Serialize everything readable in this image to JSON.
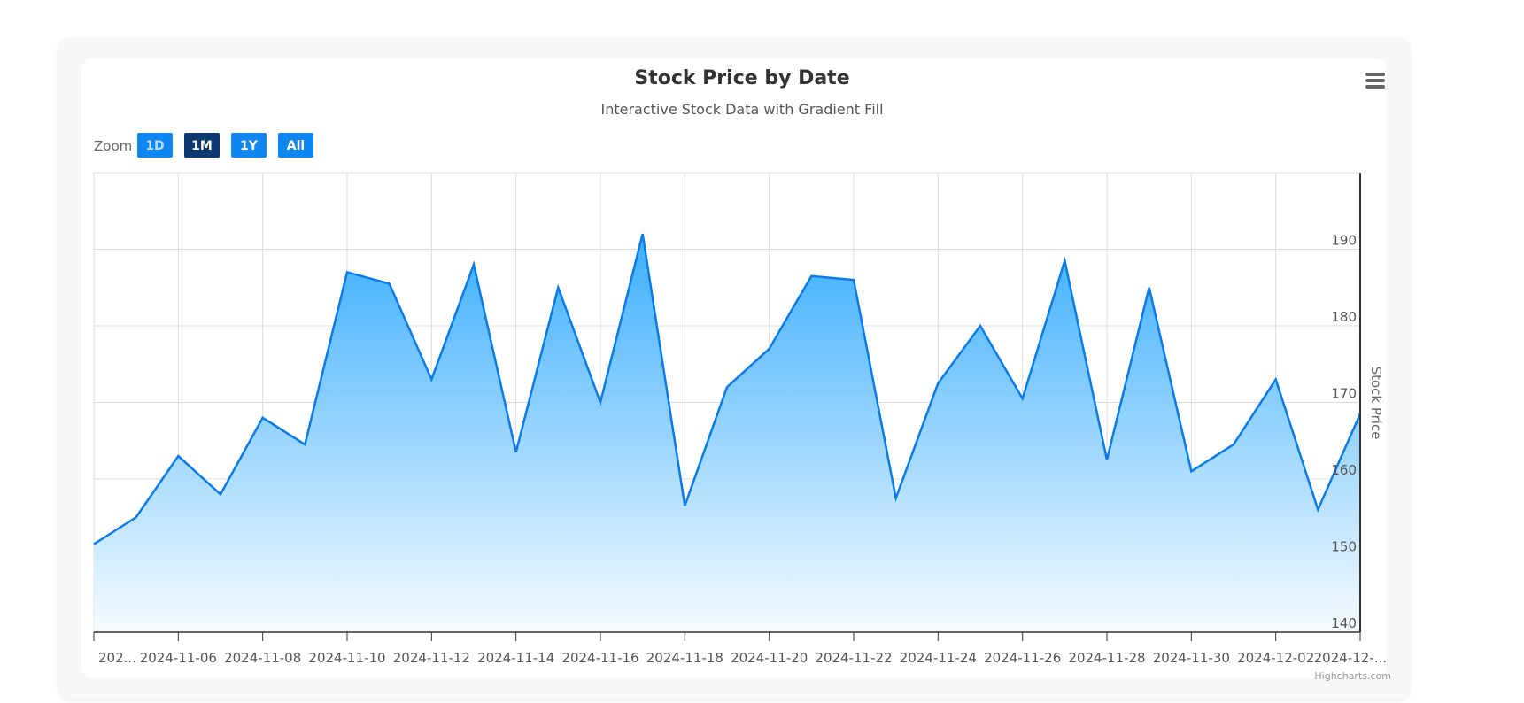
{
  "chart_data": {
    "type": "area",
    "title": "Stock Price by Date",
    "subtitle": "Interactive Stock Data with Gradient Fill",
    "ylabel": "Stock Price",
    "y_axis_position": "right",
    "ylim": [
      140,
      200
    ],
    "y_ticks": [
      140,
      150,
      160,
      170,
      180,
      190
    ],
    "x_type": "date",
    "x_tick_labels": [
      "202...",
      "2024-11-06",
      "2024-11-08",
      "2024-11-10",
      "2024-11-12",
      "2024-11-14",
      "2024-11-16",
      "2024-11-18",
      "2024-11-20",
      "2024-11-22",
      "2024-11-24",
      "2024-11-26",
      "2024-11-28",
      "2024-11-30",
      "2024-12-02",
      "2024-12-..."
    ],
    "grid": true,
    "line_color": "#0a7be9",
    "fill_gradient": [
      "#3baefd",
      "#f6fbff"
    ],
    "x": [
      "2024-11-04",
      "2024-11-05",
      "2024-11-06",
      "2024-11-07",
      "2024-11-08",
      "2024-11-09",
      "2024-11-10",
      "2024-11-11",
      "2024-11-12",
      "2024-11-13",
      "2024-11-14",
      "2024-11-15",
      "2024-11-16",
      "2024-11-17",
      "2024-11-18",
      "2024-11-19",
      "2024-11-20",
      "2024-11-21",
      "2024-11-22",
      "2024-11-23",
      "2024-11-24",
      "2024-11-25",
      "2024-11-26",
      "2024-11-27",
      "2024-11-28",
      "2024-11-29",
      "2024-11-30",
      "2024-12-01",
      "2024-12-02",
      "2024-12-03",
      "2024-12-04"
    ],
    "values": [
      151.5,
      155,
      163,
      158,
      168,
      164.5,
      187,
      185.5,
      173,
      188,
      163.5,
      185,
      170,
      192,
      156.5,
      172,
      177,
      186.5,
      186,
      157.5,
      172.5,
      180,
      170.5,
      188.5,
      162.5,
      185,
      161,
      164.5,
      173,
      156,
      168.5
    ]
  },
  "zoom": {
    "label": "Zoom",
    "buttons": [
      "1D",
      "1M",
      "1Y",
      "All"
    ],
    "selected": "1M",
    "colors": {
      "normal": "#1086f0",
      "selected": "#0c3a70",
      "first_text": "#b8dcff"
    }
  },
  "credit": "Highcharts.com",
  "menu_icon": "hamburger-menu-icon"
}
